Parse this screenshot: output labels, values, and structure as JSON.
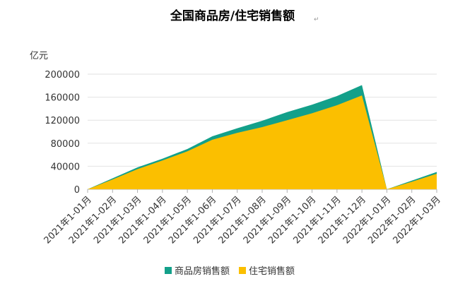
{
  "chart_data": {
    "type": "area",
    "title": "全国商品房/住宅销售额",
    "title_mark": "↵",
    "ylabel": "亿元",
    "xlabel": "",
    "ylim": [
      0,
      200000
    ],
    "yticks": [
      "0",
      "40000",
      "80000",
      "120000",
      "160000",
      "200000"
    ],
    "categories": [
      "2021年1-01月",
      "2021年1-02月",
      "2021年1-03月",
      "2021年1-04月",
      "2021年1-05月",
      "2021年1-06月",
      "2021年1-07月",
      "2021年1-08月",
      "2021年1-09月",
      "2021年1-10月",
      "2021年1-11月",
      "2021年1-12月",
      "2022年1-01月",
      "2022年1-02月",
      "2022年1-03月"
    ],
    "series": [
      {
        "name": "商品房销售额",
        "color": "#13a08a",
        "values": [
          0,
          19000,
          38000,
          53000,
          70000,
          92000,
          106000,
          119000,
          134000,
          147000,
          162000,
          181000,
          0,
          15000,
          30000
        ]
      },
      {
        "name": "住宅销售额",
        "color": "#fbbf00",
        "values": [
          0,
          17000,
          35000,
          50000,
          66000,
          86000,
          98000,
          108000,
          120000,
          132000,
          146000,
          163000,
          0,
          13000,
          27000
        ]
      }
    ],
    "grid": true,
    "legend": "bottom"
  }
}
